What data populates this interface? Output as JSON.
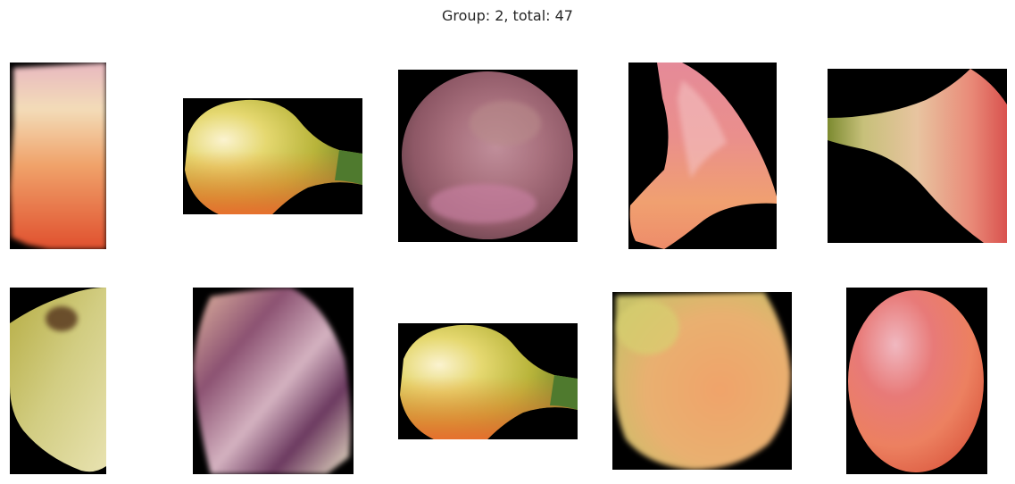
{
  "figure": {
    "title": "Group: 2, total: 47"
  },
  "tiles": [
    {
      "depicts": "blurry peach-colored fruit crop, cream top fading to orange-red"
    },
    {
      "depicts": "yellow-green pear-shaped fruit with orange bottom and stem to the right"
    },
    {
      "depicts": "round pixelated mauve-pink fruit crop"
    },
    {
      "depicts": "curved pink and orange fruit fragment"
    },
    {
      "depicts": "wedge-shaped fruit fragment, green on left, pink-red on right"
    },
    {
      "depicts": "yellow-olive fruit with a dark spot"
    },
    {
      "depicts": "blurry purple and cream fruit crop"
    },
    {
      "depicts": "yellow-green pear-shaped fruit with orange bottom and stem to the right"
    },
    {
      "depicts": "large yellow-orange fruit crop"
    },
    {
      "depicts": "oval red-orange fruit with pink highlight"
    }
  ]
}
